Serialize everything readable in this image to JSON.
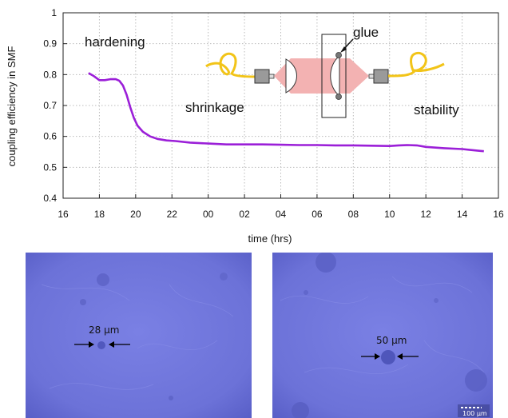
{
  "chart_data": {
    "type": "line",
    "xlabel": "time (hrs)",
    "ylabel": "coupling efficiency in SMF",
    "ylim": [
      0.4,
      1.0
    ],
    "y_ticks": [
      "0.4",
      "0.5",
      "0.6",
      "0.7",
      "0.8",
      "0.9",
      "1"
    ],
    "x_ticks": [
      "16",
      "18",
      "20",
      "22",
      "00",
      "02",
      "04",
      "06",
      "08",
      "10",
      "12",
      "14",
      "16"
    ],
    "grid": true,
    "series": [
      {
        "color": "#9b1fd8",
        "x": [
          17.4,
          17.7,
          18.0,
          18.3,
          18.6,
          18.9,
          19.1,
          19.3,
          19.5,
          19.7,
          19.9,
          20.1,
          20.4,
          20.8,
          21.2,
          21.7,
          22.2,
          23.0,
          24.0,
          25.0,
          26.0,
          27.0,
          28.0,
          29.0,
          30.0,
          31.0,
          32.0,
          33.0,
          34.0,
          34.5,
          35.0,
          35.5,
          36.0,
          37.0,
          38.0,
          38.5,
          39.0,
          39.2
        ],
        "y": [
          0.805,
          0.795,
          0.782,
          0.782,
          0.785,
          0.785,
          0.78,
          0.765,
          0.735,
          0.695,
          0.66,
          0.635,
          0.615,
          0.6,
          0.592,
          0.587,
          0.585,
          0.58,
          0.577,
          0.574,
          0.574,
          0.574,
          0.573,
          0.572,
          0.572,
          0.571,
          0.571,
          0.57,
          0.569,
          0.571,
          0.572,
          0.571,
          0.566,
          0.562,
          0.559,
          0.556,
          0.553,
          0.552
        ]
      }
    ],
    "annotations": [
      "hardening",
      "shrinkage",
      "stability",
      "glue"
    ]
  },
  "images": [
    {
      "scale_text": "28 μm"
    },
    {
      "scale_text": "50 μm",
      "scalebar_text": "100 μm"
    }
  ],
  "colors": {
    "line": "#9b1fd8",
    "fiber": "#f2c418",
    "beam": "#f3b2b2",
    "micro_bg": "#6c72d8"
  }
}
